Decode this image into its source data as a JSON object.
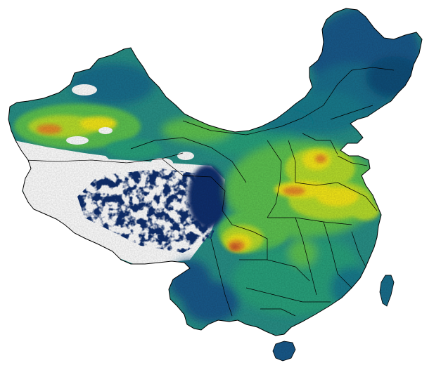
{
  "map": {
    "subject": "China",
    "palette": {
      "background": "#ffffff",
      "no_data": "#ffffff",
      "lowest": "#15336e",
      "low": "#1f5a8a",
      "low_mid": "#1f7a8c",
      "mid": "#2aa07c",
      "mid_high": "#5dc151",
      "high": "#b6dc2e",
      "higher": "#f2e51b",
      "highest": "#e48a2a",
      "peak": "#c8552b",
      "boundary": "#000000"
    },
    "show_province_boundaries": true,
    "legend": null
  }
}
